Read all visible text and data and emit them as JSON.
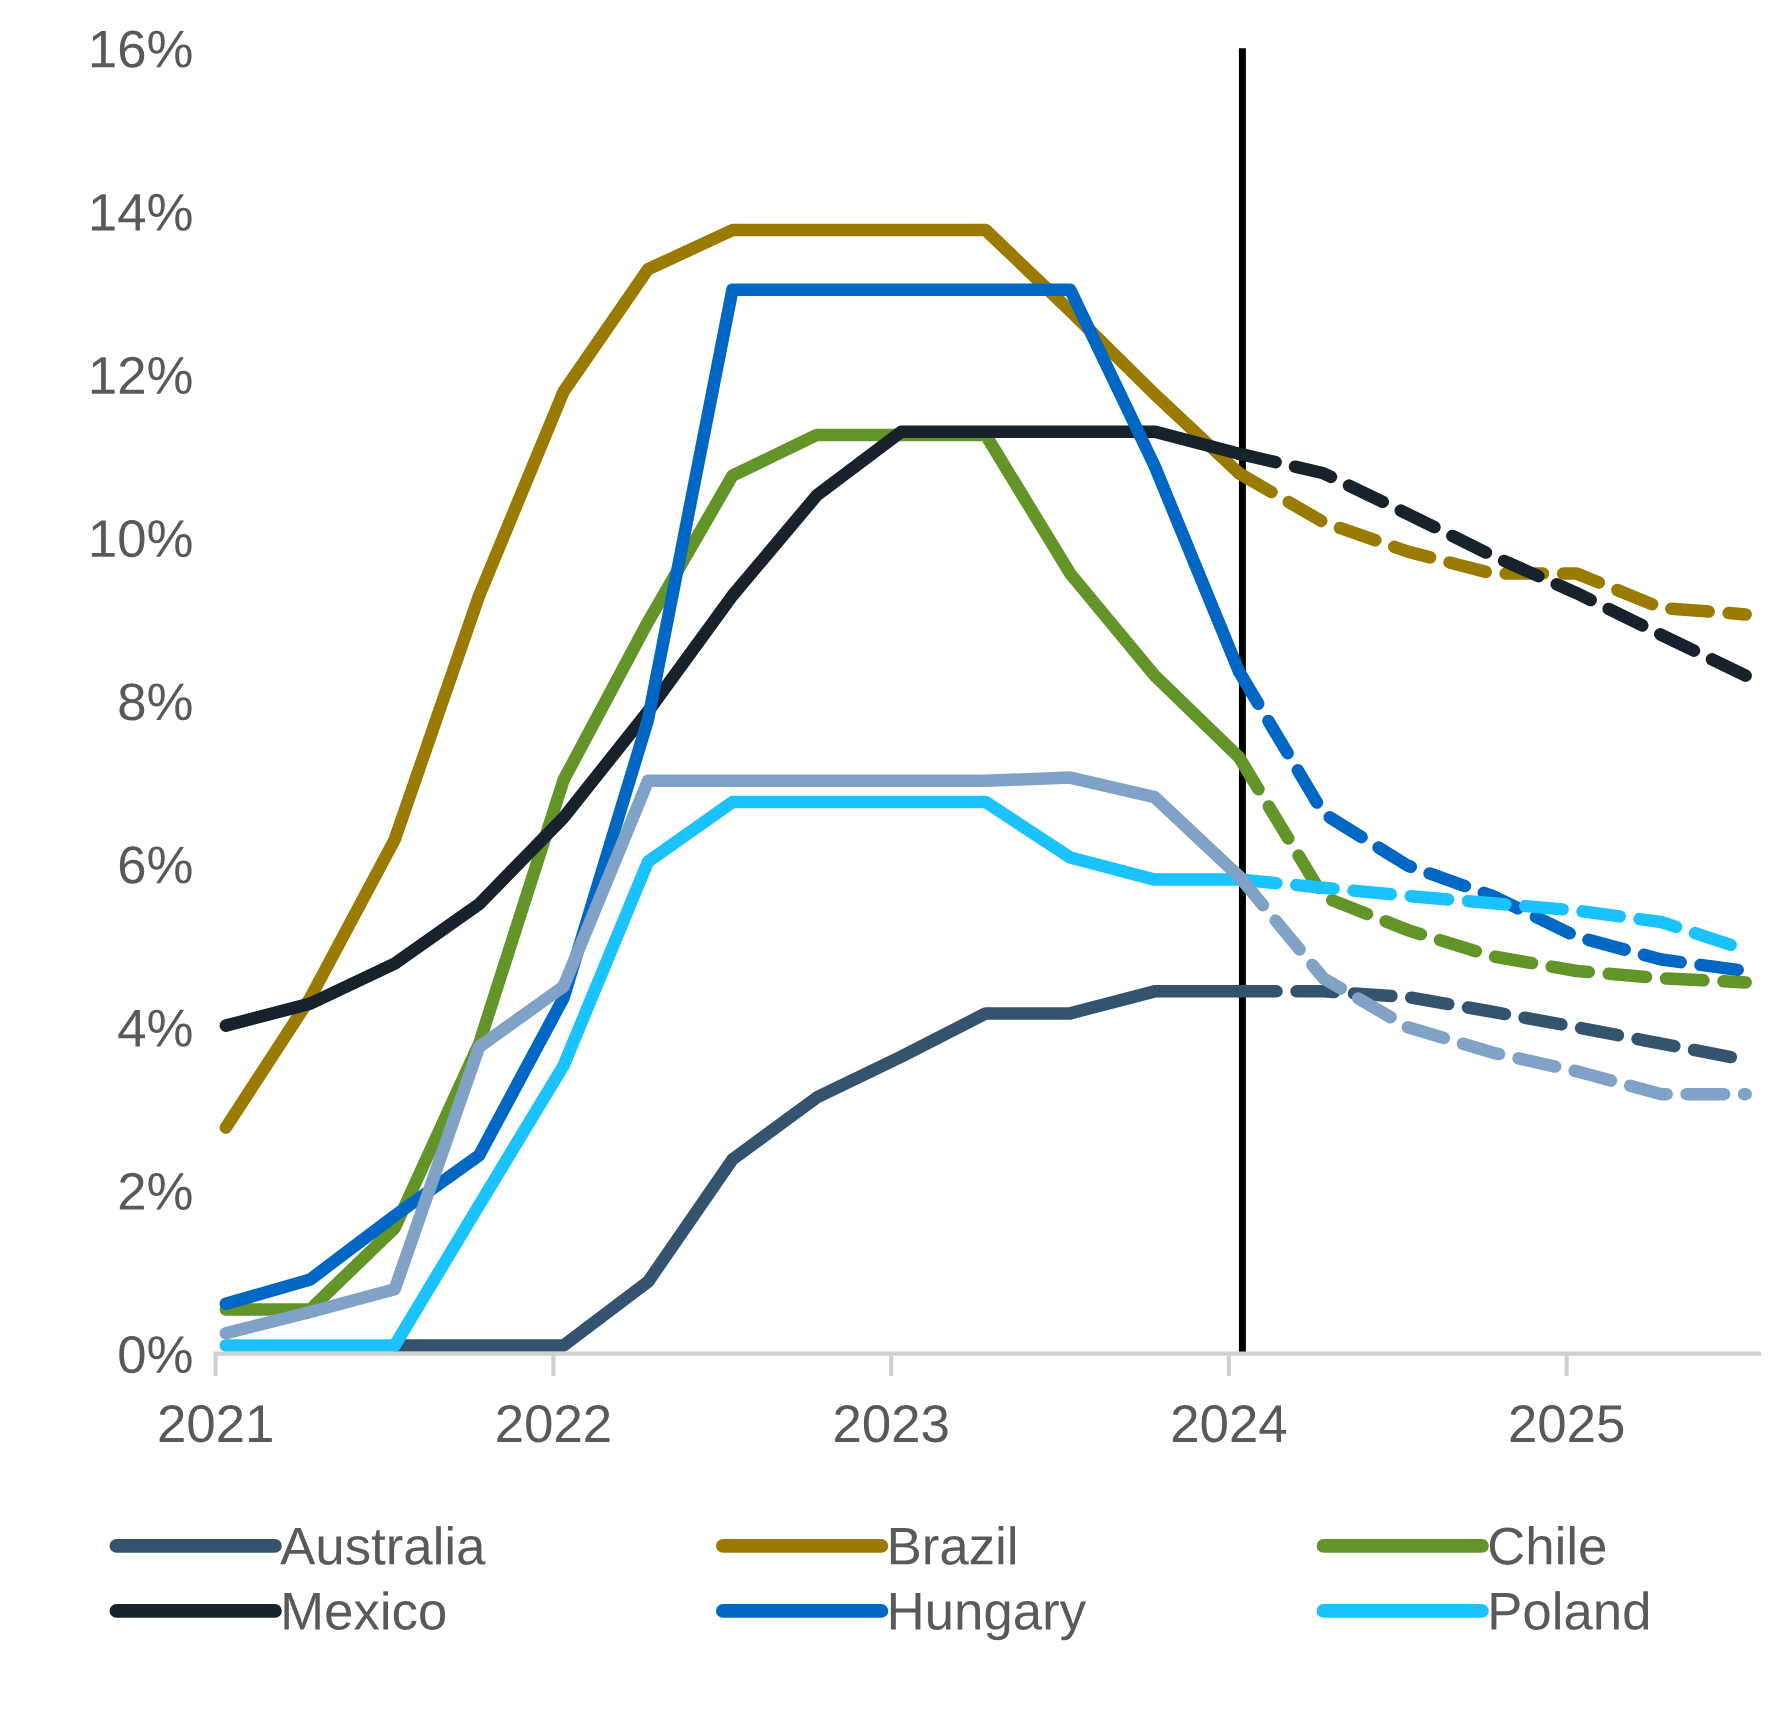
{
  "chart_data": {
    "type": "line",
    "x": [
      2021.03,
      2021.28,
      2021.53,
      2021.78,
      2022.03,
      2022.28,
      2022.53,
      2022.78,
      2023.03,
      2023.28,
      2023.53,
      2023.78,
      2024.03,
      2024.28,
      2024.53,
      2024.78,
      2025.03,
      2025.28,
      2025.53
    ],
    "series": [
      {
        "name": "Australia",
        "color": "#34536f",
        "line_style": "solid",
        "values": [
          null,
          null,
          0.1,
          0.1,
          0.1,
          0.88,
          2.38,
          3.14,
          3.64,
          4.17,
          4.17,
          4.44,
          4.44,
          null,
          null,
          null,
          null,
          null,
          null
        ]
      },
      {
        "color": "#34536f",
        "line_style": "dashed",
        "values": [
          null,
          null,
          null,
          null,
          null,
          null,
          null,
          null,
          null,
          null,
          null,
          null,
          4.44,
          4.44,
          4.37,
          4.19,
          4.0,
          3.8,
          3.6
        ]
      },
      {
        "name": "Brazil",
        "color": "#9a7b00",
        "line_style": "solid",
        "values": [
          2.77,
          4.36,
          6.3,
          9.29,
          11.79,
          13.29,
          13.77,
          13.77,
          13.77,
          13.77,
          12.78,
          11.76,
          10.79,
          null,
          null,
          null,
          null,
          null,
          null
        ]
      },
      {
        "color": "#9a7b00",
        "line_style": "dashed",
        "values": [
          null,
          null,
          null,
          null,
          null,
          null,
          null,
          null,
          null,
          null,
          null,
          null,
          10.79,
          10.19,
          9.83,
          9.56,
          9.56,
          9.14,
          9.06
        ]
      },
      {
        "name": "Chile",
        "color": "#639428",
        "line_style": "solid",
        "values": [
          0.54,
          0.54,
          1.54,
          3.8,
          7.03,
          8.97,
          10.76,
          11.26,
          11.26,
          11.26,
          9.56,
          8.31,
          7.31,
          null,
          null,
          null,
          null,
          null,
          null
        ]
      },
      {
        "color": "#639428",
        "line_style": "dashed",
        "values": [
          null,
          null,
          null,
          null,
          null,
          null,
          null,
          null,
          null,
          null,
          null,
          null,
          7.31,
          5.6,
          5.19,
          4.87,
          4.69,
          4.6,
          4.55
        ]
      },
      {
        "name": "Mexico",
        "color": "#18222c",
        "line_style": "solid",
        "values": [
          4.02,
          4.29,
          4.78,
          5.51,
          6.57,
          7.87,
          9.29,
          10.52,
          11.3,
          11.3,
          11.3,
          11.3,
          11.03,
          null,
          null,
          null,
          null,
          null,
          null
        ]
      },
      {
        "color": "#18222c",
        "line_style": "dashed",
        "values": [
          null,
          null,
          null,
          null,
          null,
          null,
          null,
          null,
          null,
          null,
          null,
          null,
          11.03,
          10.79,
          10.29,
          9.78,
          9.32,
          8.81,
          8.31
        ]
      },
      {
        "name": "Hungary",
        "color": "#0068c4",
        "line_style": "solid",
        "values": [
          0.61,
          0.91,
          1.69,
          2.43,
          4.36,
          7.77,
          13.04,
          13.04,
          13.04,
          13.04,
          13.04,
          10.88,
          8.36,
          null,
          null,
          null,
          null,
          null,
          null
        ]
      },
      {
        "color": "#0068c4",
        "line_style": "dashed",
        "values": [
          null,
          null,
          null,
          null,
          null,
          null,
          null,
          null,
          null,
          null,
          null,
          null,
          8.36,
          6.62,
          5.98,
          5.61,
          5.11,
          4.83,
          4.69
        ]
      },
      {
        "name": "Poland",
        "color": "#1ac2ff",
        "line_style": "solid",
        "values": [
          0.1,
          0.1,
          0.1,
          1.82,
          3.53,
          6.03,
          6.76,
          6.76,
          6.76,
          6.76,
          6.08,
          5.81,
          5.81,
          null,
          null,
          null,
          null,
          null,
          null
        ]
      },
      {
        "color": "#1ac2ff",
        "line_style": "dashed",
        "values": [
          null,
          null,
          null,
          null,
          null,
          null,
          null,
          null,
          null,
          null,
          null,
          null,
          5.81,
          5.71,
          5.61,
          5.52,
          5.43,
          5.29,
          4.95
        ]
      },
      {
        "color": "#7fa2c6",
        "line_style": "solid",
        "values": [
          0.25,
          0.51,
          0.79,
          3.76,
          4.5,
          7.02,
          7.02,
          7.02,
          7.02,
          7.02,
          7.06,
          6.82,
          5.85,
          null,
          null,
          null,
          null,
          null,
          null
        ]
      },
      {
        "color": "#7fa2c6",
        "line_style": "dashed",
        "values": [
          null,
          null,
          null,
          null,
          null,
          null,
          null,
          null,
          null,
          null,
          null,
          null,
          5.85,
          4.6,
          4.0,
          3.69,
          3.46,
          3.18,
          3.18
        ]
      }
    ],
    "xlim": [
      2021,
      2025.57
    ],
    "xticks": [
      2021,
      2022,
      2023,
      2024,
      2025
    ],
    "ylim": [
      0,
      16
    ],
    "yticks": [
      {
        "value": 0,
        "label": "0%"
      },
      {
        "value": 2,
        "label": "2%"
      },
      {
        "value": 4,
        "label": "4%"
      },
      {
        "value": 6,
        "label": "6%"
      },
      {
        "value": 8,
        "label": "8%"
      },
      {
        "value": 10,
        "label": "10%"
      },
      {
        "value": 12,
        "label": "12%"
      },
      {
        "value": 14,
        "label": "14%"
      },
      {
        "value": 16,
        "label": "16%"
      }
    ],
    "ref_lines": [
      {
        "axis": "x",
        "value": 2024.04,
        "color": "#000000"
      }
    ],
    "grid": false,
    "legend": "bottom",
    "marker": "none"
  }
}
